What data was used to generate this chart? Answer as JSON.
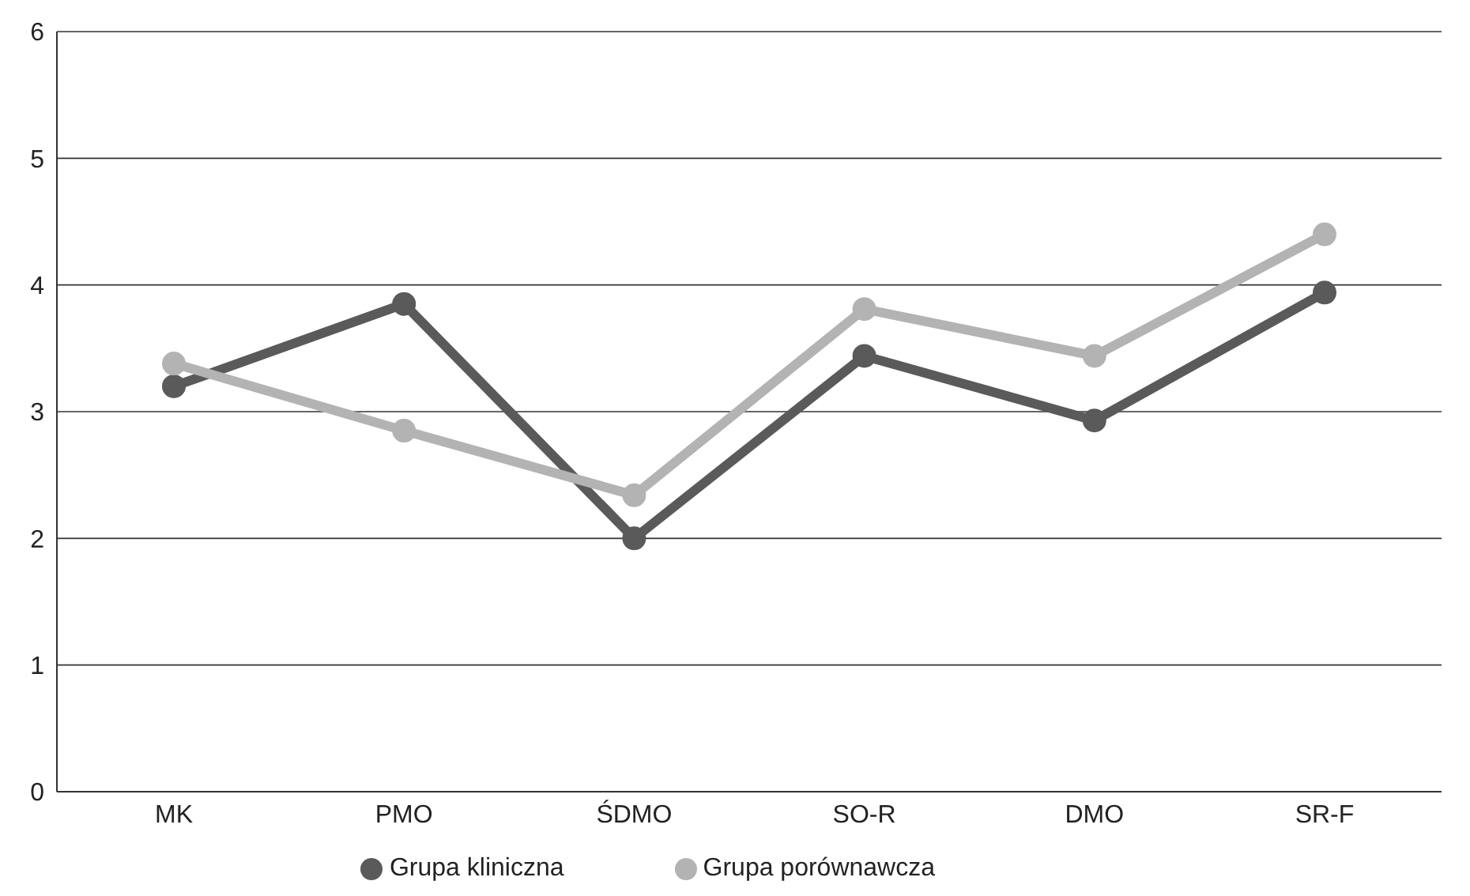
{
  "chart_data": {
    "type": "line",
    "categories": [
      "MK",
      "PMO",
      "ŚDMO",
      "SO-R",
      "DMO",
      "SR-F"
    ],
    "series": [
      {
        "name": "Grupa kliniczna",
        "color": "#5a5a5a",
        "values": [
          3.2,
          3.85,
          2.0,
          3.44,
          2.93,
          3.94
        ]
      },
      {
        "name": "Grupa porównawcza",
        "color": "#b3b3b3",
        "values": [
          3.38,
          2.85,
          2.34,
          3.81,
          3.44,
          4.4
        ]
      }
    ],
    "ylim": [
      0,
      6
    ],
    "yticks": [
      0,
      1,
      2,
      3,
      4,
      5,
      6
    ],
    "grid": "y",
    "legend": "bottom",
    "marker": "circle",
    "line_style": "solid"
  }
}
